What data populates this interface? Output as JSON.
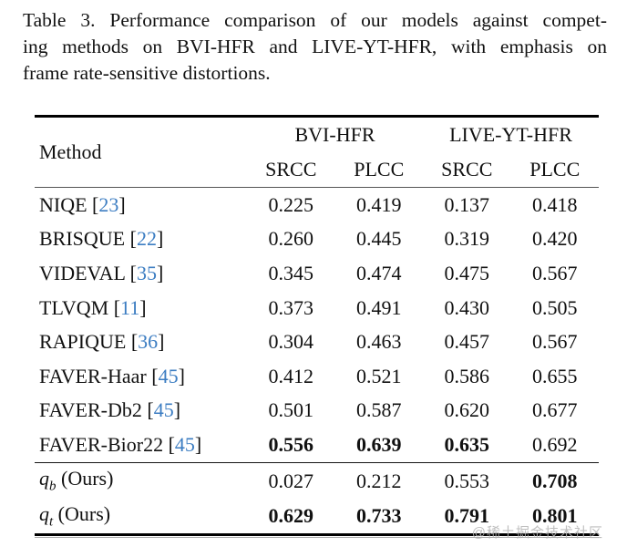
{
  "caption": {
    "lines": [
      "Table 3.  Performance comparison of our models against compet-",
      "ing methods on BVI-HFR and LIVE-YT-HFR, with emphasis on",
      "frame rate-sensitive distortions."
    ]
  },
  "table": {
    "method_header": "Method",
    "groups": [
      {
        "label": "BVI-HFR"
      },
      {
        "label": "LIVE-YT-HFR"
      }
    ],
    "sub_headers": [
      "SRCC",
      "PLCC",
      "SRCC",
      "PLCC"
    ],
    "rows": [
      {
        "method": "NIQE",
        "cite": "23",
        "values": [
          "0.225",
          "0.419",
          "0.137",
          "0.418"
        ],
        "bold": [
          false,
          false,
          false,
          false
        ]
      },
      {
        "method": "BRISQUE",
        "cite": "22",
        "values": [
          "0.260",
          "0.445",
          "0.319",
          "0.420"
        ],
        "bold": [
          false,
          false,
          false,
          false
        ]
      },
      {
        "method": "VIDEVAL",
        "cite": "35",
        "values": [
          "0.345",
          "0.474",
          "0.475",
          "0.567"
        ],
        "bold": [
          false,
          false,
          false,
          false
        ]
      },
      {
        "method": "TLVQM",
        "cite": "11",
        "values": [
          "0.373",
          "0.491",
          "0.430",
          "0.505"
        ],
        "bold": [
          false,
          false,
          false,
          false
        ]
      },
      {
        "method": "RAPIQUE",
        "cite": "36",
        "values": [
          "0.304",
          "0.463",
          "0.457",
          "0.567"
        ],
        "bold": [
          false,
          false,
          false,
          false
        ]
      },
      {
        "method": "FAVER-Haar",
        "cite": "45",
        "values": [
          "0.412",
          "0.521",
          "0.586",
          "0.655"
        ],
        "bold": [
          false,
          false,
          false,
          false
        ]
      },
      {
        "method": "FAVER-Db2",
        "cite": "45",
        "values": [
          "0.501",
          "0.587",
          "0.620",
          "0.677"
        ],
        "bold": [
          false,
          false,
          false,
          false
        ]
      },
      {
        "method": "FAVER-Bior22",
        "cite": "45",
        "values": [
          "0.556",
          "0.639",
          "0.635",
          "0.692"
        ],
        "bold": [
          true,
          true,
          true,
          false
        ]
      }
    ],
    "ours_rows": [
      {
        "method_base": "q",
        "method_sub": "b",
        "method_suffix": "(Ours)",
        "values": [
          "0.027",
          "0.212",
          "0.553",
          "0.708"
        ],
        "bold": [
          false,
          false,
          false,
          true
        ]
      },
      {
        "method_base": "q",
        "method_sub": "t",
        "method_suffix": "(Ours)",
        "values": [
          "0.629",
          "0.733",
          "0.791",
          "0.801"
        ],
        "bold": [
          true,
          true,
          true,
          true
        ]
      }
    ]
  },
  "watermark": "@稀土掘金技术社区",
  "colors": {
    "cite_blue": "#3c7dc2",
    "text": "#111111",
    "watermark": "#b5b5b5"
  }
}
